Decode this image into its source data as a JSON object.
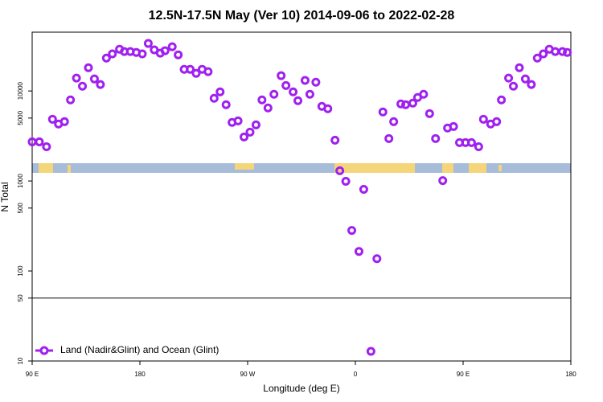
{
  "chart_data": {
    "type": "scatter",
    "title": "12.5N-17.5N May (Ver 10)   2014-09-06 to 2022-02-28",
    "x_label": "Longitude (deg E)",
    "y_label": "N Total",
    "log_y": true,
    "legend": "bottom-left",
    "xlim": [
      90,
      540
    ],
    "xticks": [
      {
        "value": 90,
        "label": "90 E"
      },
      {
        "value": 180,
        "label": "180"
      },
      {
        "value": 270,
        "label": "90 W"
      },
      {
        "value": 360,
        "label": "0"
      },
      {
        "value": 450,
        "label": "90 E"
      },
      {
        "value": 540,
        "label": "180"
      }
    ],
    "ylim": [
      10,
      45000
    ],
    "yticks": [
      10,
      50,
      100,
      500,
      1000,
      5000,
      10000
    ],
    "hlines": [
      50
    ],
    "series": [
      {
        "name": "Land (Nadir&Glint) and Ocean (Glint)",
        "color": "#a020f0",
        "x": [
          90,
          96,
          102,
          107,
          112,
          117,
          122,
          127,
          132,
          137,
          142,
          147,
          152,
          157,
          163,
          167,
          172,
          177,
          182,
          187,
          192,
          197,
          201,
          207,
          212,
          217,
          222,
          227,
          232,
          237,
          242,
          247,
          252,
          257,
          262,
          267,
          272,
          277,
          282,
          287,
          292,
          298,
          302,
          308,
          312,
          318,
          322,
          327,
          332,
          337,
          343,
          347,
          352,
          357,
          363,
          367,
          373,
          378,
          383,
          388,
          392,
          398,
          402,
          408,
          412,
          417,
          422,
          427,
          433,
          437,
          442,
          447,
          452,
          457,
          463,
          467,
          473,
          478,
          482,
          488,
          492,
          497,
          502,
          507,
          512,
          517,
          522,
          527,
          533,
          537
        ],
        "values": [
          2720,
          2720,
          2400,
          4850,
          4290,
          4560,
          7960,
          13900,
          11300,
          18100,
          13600,
          11800,
          23200,
          25800,
          29100,
          27400,
          27400,
          26800,
          25800,
          33700,
          28600,
          26300,
          28000,
          31000,
          25200,
          17400,
          17400,
          15700,
          17400,
          16400,
          8290,
          9770,
          7030,
          4470,
          4650,
          3080,
          3490,
          4200,
          7960,
          6480,
          9190,
          14800,
          11500,
          9770,
          7790,
          13100,
          9190,
          12500,
          6750,
          6340,
          2840,
          1300,
          991,
          282,
          165,
          807,
          12.8,
          137,
          5840,
          2960,
          4560,
          7180,
          7030,
          7330,
          8470,
          9190,
          5600,
          2960,
          1010,
          3870,
          4030,
          2670,
          2670,
          2670,
          2400,
          4850,
          4290,
          4560,
          7960,
          13900,
          11300,
          18100,
          13600,
          11800,
          23200,
          25800,
          29100,
          27400,
          27400,
          26800
        ]
      }
    ]
  }
}
